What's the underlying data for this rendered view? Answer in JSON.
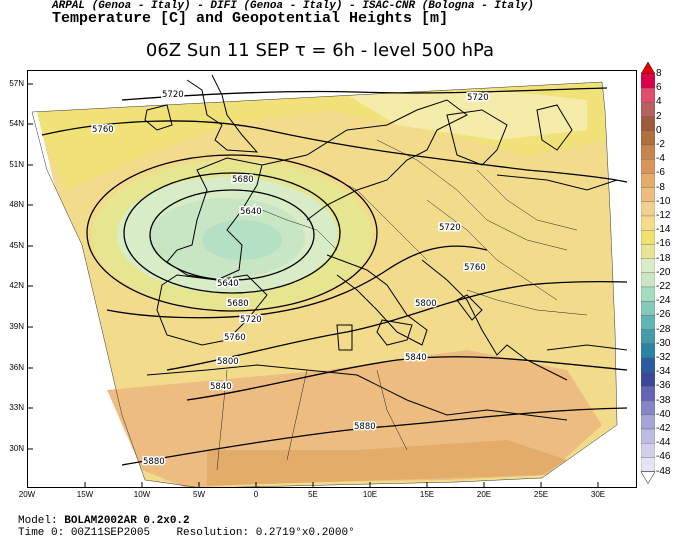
{
  "header": {
    "credits": "ARPAL (Genoa - Italy)  -  DIFI (Genoa - Italy)  -  ISAC-CNR (Bologna - Italy)",
    "product": "Temperature [C] and Geopotential Heights [m]",
    "time_title": "06Z Sun 11 SEP  τ = 6h  -  level 500 hPa"
  },
  "axes": {
    "lat_labels": [
      "57N",
      "54N",
      "51N",
      "48N",
      "45N",
      "42N",
      "39N",
      "36N",
      "33N",
      "30N"
    ],
    "lon_labels": [
      "20W",
      "15W",
      "10W",
      "5W",
      "0",
      "5E",
      "10E",
      "15E",
      "20E",
      "25E",
      "30E"
    ]
  },
  "contour_labels": [
    "5720",
    "5720",
    "5760",
    "5680",
    "5640",
    "5640",
    "5680",
    "5720",
    "5760",
    "5800",
    "5720",
    "5760",
    "5800",
    "5840",
    "5840",
    "5880",
    "5880"
  ],
  "legend": {
    "labels": [
      "8",
      "6",
      "4",
      "2",
      "0",
      "-2",
      "-4",
      "-6",
      "-8",
      "-10",
      "-12",
      "-14",
      "-16",
      "-18",
      "-20",
      "-22",
      "-24",
      "-26",
      "-28",
      "-30",
      "-32",
      "-34",
      "-36",
      "-38",
      "-40",
      "-42",
      "-44",
      "-46",
      "-48"
    ],
    "colors": [
      "#d8004a",
      "#e04e6a",
      "#b86060",
      "#a05a3c",
      "#b0703c",
      "#c8844e",
      "#d8965a",
      "#e4ac6a",
      "#ecbc80",
      "#f2d090",
      "#f4dc8a",
      "#f0e070",
      "#e8e494",
      "#d8ecc8",
      "#c8e6c4",
      "#a4dcc0",
      "#88c8b8",
      "#60b4b4",
      "#449ca8",
      "#2c84a4",
      "#2c5ca0",
      "#3a489c",
      "#6464b4",
      "#8486c8",
      "#a4a4d8",
      "#bcbce2",
      "#d0d0ec",
      "#e4e4f4"
    ],
    "top_arrow_color": "#e40000"
  },
  "footer": {
    "model_label": "Model:",
    "model_value": "BOLAM2002AR 0.2x0.2",
    "time0_label": "Time 0:",
    "time0_value": "00Z11SEP2005",
    "resolution_label": "Resolution:",
    "resolution_value": "0.2719°x0.2000°"
  }
}
